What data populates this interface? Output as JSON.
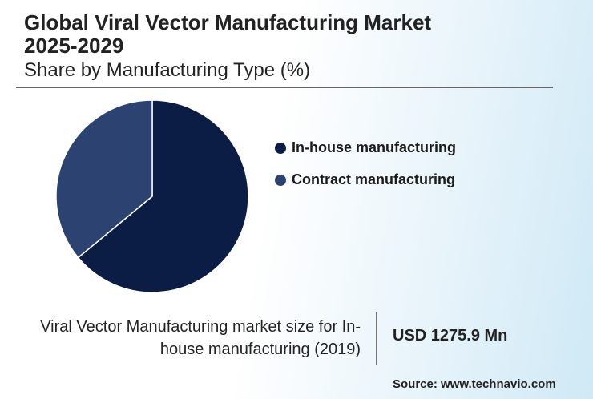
{
  "chart_data": {
    "type": "pie",
    "title": "Global Viral Vector Manufacturing Market 2025-2029",
    "subtitle": "Share by Manufacturing Type (%)",
    "categories": [
      "In-house manufacturing",
      "Contract manufacturing"
    ],
    "values": [
      64,
      36
    ],
    "colors": [
      "#0b1d45",
      "#2c4271"
    ]
  },
  "info": {
    "label": "Viral Vector Manufacturing market size for In-house manufacturing (2019)",
    "value": "USD 1275.9 Mn",
    "source": "Source: www.technavio.com"
  }
}
